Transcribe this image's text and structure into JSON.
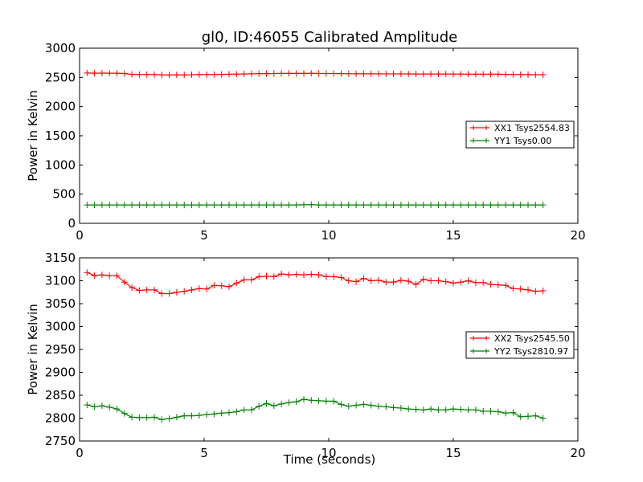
{
  "page": {
    "title": "gl0, ID:46055 Calibrated Amplitude",
    "xlabel": "Time (seconds)"
  },
  "colors": {
    "xx": "#ff0000",
    "yy": "#008000"
  },
  "chart_data": [
    {
      "type": "line",
      "title": "gl0, ID:46055 Calibrated Amplitude",
      "xlabel": "",
      "ylabel": "Power in Kelvin",
      "xlim": [
        0,
        20
      ],
      "ylim": [
        0,
        3000
      ],
      "xticks": [
        0,
        5,
        10,
        15,
        20
      ],
      "yticks": [
        0,
        500,
        1000,
        1500,
        2000,
        2500,
        3000
      ],
      "grid": false,
      "legend": "center-right",
      "x": [
        0.3,
        0.6,
        0.9,
        1.2,
        1.5,
        1.8,
        2.1,
        2.4,
        2.7,
        3.0,
        3.3,
        3.6,
        3.9,
        4.2,
        4.5,
        4.8,
        5.1,
        5.4,
        5.7,
        6.0,
        6.3,
        6.6,
        6.9,
        7.2,
        7.5,
        7.8,
        8.1,
        8.4,
        8.7,
        9.0,
        9.3,
        9.6,
        9.9,
        10.2,
        10.5,
        10.8,
        11.1,
        11.4,
        11.7,
        12.0,
        12.3,
        12.6,
        12.9,
        13.2,
        13.5,
        13.8,
        14.1,
        14.4,
        14.7,
        15.0,
        15.3,
        15.6,
        15.9,
        16.2,
        16.5,
        16.8,
        17.1,
        17.4,
        17.7,
        18.0,
        18.3,
        18.6
      ],
      "series": [
        {
          "name": "XX1 Tsys2554.83",
          "color": "#ff0000",
          "values": [
            2575,
            2572,
            2573,
            2572,
            2572,
            2566,
            2552,
            2549,
            2549,
            2549,
            2542,
            2541,
            2543,
            2542,
            2546,
            2549,
            2548,
            2550,
            2551,
            2555,
            2557,
            2558,
            2562,
            2564,
            2565,
            2566,
            2568,
            2568,
            2568,
            2568,
            2570,
            2567,
            2567,
            2566,
            2565,
            2563,
            2562,
            2561,
            2561,
            2560,
            2560,
            2560,
            2559,
            2559,
            2558,
            2558,
            2558,
            2558,
            2558,
            2557,
            2557,
            2556,
            2556,
            2555,
            2555,
            2554,
            2552,
            2549,
            2548,
            2547,
            2546,
            2546
          ]
        },
        {
          "name": "YY1 Tsys0.00",
          "color": "#008000",
          "values": [
            315,
            315,
            315,
            315,
            315,
            315,
            315,
            315,
            315,
            315,
            315,
            315,
            315,
            315,
            315,
            315,
            315,
            315,
            315,
            315,
            315,
            315,
            315,
            315,
            315,
            315,
            315,
            315,
            315,
            318,
            320,
            315,
            315,
            315,
            315,
            315,
            315,
            315,
            315,
            315,
            315,
            315,
            315,
            315,
            315,
            315,
            315,
            315,
            315,
            315,
            315,
            315,
            315,
            315,
            315,
            315,
            315,
            315,
            315,
            315,
            315,
            315
          ]
        }
      ]
    },
    {
      "type": "line",
      "title": "",
      "xlabel": "Time (seconds)",
      "ylabel": "Power in Kelvin",
      "xlim": [
        0,
        20
      ],
      "ylim": [
        2750,
        3150
      ],
      "xticks": [
        0,
        5,
        10,
        15,
        20
      ],
      "yticks": [
        2750,
        2800,
        2850,
        2900,
        2950,
        3000,
        3050,
        3100,
        3150
      ],
      "grid": false,
      "legend": "center-right",
      "x": [
        0.3,
        0.6,
        0.9,
        1.2,
        1.5,
        1.8,
        2.1,
        2.4,
        2.7,
        3.0,
        3.3,
        3.6,
        3.9,
        4.2,
        4.5,
        4.8,
        5.1,
        5.4,
        5.7,
        6.0,
        6.3,
        6.6,
        6.9,
        7.2,
        7.5,
        7.8,
        8.1,
        8.4,
        8.7,
        9.0,
        9.3,
        9.6,
        9.9,
        10.2,
        10.5,
        10.8,
        11.1,
        11.4,
        11.7,
        12.0,
        12.3,
        12.6,
        12.9,
        13.2,
        13.5,
        13.8,
        14.1,
        14.4,
        14.7,
        15.0,
        15.3,
        15.6,
        15.9,
        16.2,
        16.5,
        16.8,
        17.1,
        17.4,
        17.7,
        18.0,
        18.3,
        18.6
      ],
      "series": [
        {
          "name": "XX2 Tsys2545.50",
          "color": "#ff0000",
          "values": [
            3118,
            3111,
            3113,
            3111,
            3111,
            3097,
            3085,
            3079,
            3080,
            3080,
            3072,
            3072,
            3075,
            3077,
            3080,
            3083,
            3082,
            3090,
            3089,
            3087,
            3095,
            3102,
            3102,
            3109,
            3110,
            3109,
            3115,
            3113,
            3114,
            3113,
            3114,
            3113,
            3109,
            3109,
            3107,
            3100,
            3098,
            3105,
            3100,
            3101,
            3097,
            3097,
            3101,
            3099,
            3092,
            3103,
            3100,
            3100,
            3098,
            3095,
            3097,
            3100,
            3096,
            3096,
            3092,
            3091,
            3090,
            3083,
            3082,
            3080,
            3077,
            3078
          ]
        },
        {
          "name": "YY2 Tsys2810.97",
          "color": "#008000",
          "values": [
            2829,
            2825,
            2827,
            2824,
            2820,
            2810,
            2802,
            2801,
            2801,
            2802,
            2797,
            2799,
            2802,
            2805,
            2805,
            2806,
            2808,
            2809,
            2811,
            2812,
            2814,
            2818,
            2818,
            2826,
            2832,
            2827,
            2831,
            2834,
            2836,
            2841,
            2839,
            2838,
            2837,
            2837,
            2830,
            2826,
            2828,
            2830,
            2828,
            2826,
            2825,
            2823,
            2822,
            2820,
            2819,
            2818,
            2820,
            2818,
            2818,
            2820,
            2819,
            2818,
            2818,
            2815,
            2815,
            2814,
            2811,
            2812,
            2803,
            2804,
            2805,
            2800
          ]
        }
      ]
    }
  ]
}
